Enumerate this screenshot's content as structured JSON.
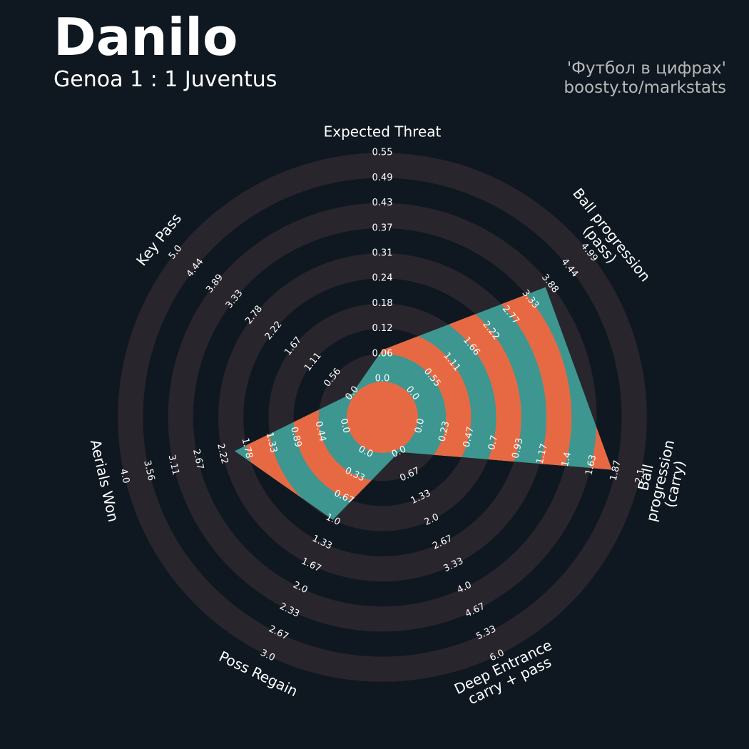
{
  "header": {
    "title": "Danilo",
    "subtitle": "Genoa 1 : 1 Juventus",
    "credit": [
      "'Футбол в цифрах'",
      "boosty.to/markstats"
    ]
  },
  "chart_data": {
    "type": "radar",
    "params": [
      "Expected Threat",
      "Ball progression (pass)",
      "Ball progression (carry)",
      "Deep Entrance\ncarry + pass",
      "Poss Regain",
      "Aerials Won",
      "Key Pass"
    ],
    "ticks": [
      [
        {
          "value": 0,
          "label": "0.0"
        },
        0.06,
        0.12,
        0.18,
        0.24,
        0.31,
        0.37,
        0.43,
        0.49,
        0.55
      ],
      [
        {
          "value": 0,
          "label": "0.0"
        },
        0.55,
        1.11,
        1.66,
        2.22,
        2.77,
        3.33,
        3.88,
        4.44,
        4.99
      ],
      [
        {
          "value": 0,
          "label": "0.0"
        },
        0.23,
        0.47,
        0.7,
        0.93,
        1.17,
        1.4,
        1.63,
        1.87,
        2.1
      ],
      [
        {
          "value": 0,
          "label": "0.0"
        },
        0.67,
        1.33,
        {
          "value": 2,
          "label": "2.0"
        },
        2.67,
        3.33,
        {
          "value": 4,
          "label": "4.0"
        },
        4.67,
        5.33,
        {
          "value": 6,
          "label": "6.0"
        }
      ],
      [
        {
          "value": 0,
          "label": "0.0"
        },
        0.33,
        0.67,
        {
          "value": 1,
          "label": "1.0"
        },
        1.33,
        1.67,
        {
          "value": 2,
          "label": "2.0"
        },
        2.33,
        2.67,
        {
          "value": 3,
          "label": "3.0"
        }
      ],
      [
        {
          "value": 0,
          "label": "0.0"
        },
        0.44,
        0.89,
        1.33,
        1.78,
        2.22,
        2.67,
        3.11,
        3.56,
        {
          "value": 4,
          "label": "4.0"
        }
      ],
      [
        {
          "value": 0,
          "label": "0.0"
        },
        0.56,
        1.11,
        1.67,
        2.22,
        2.78,
        3.33,
        3.89,
        4.44,
        {
          "value": 5,
          "label": "5.0"
        }
      ]
    ],
    "values": [
      0.07,
      3.76,
      1.83,
      0,
      1.0,
      2.0,
      0
    ],
    "color": "#3d9690",
    "alt_color": "#e76944",
    "ring_color": "#29252c"
  }
}
